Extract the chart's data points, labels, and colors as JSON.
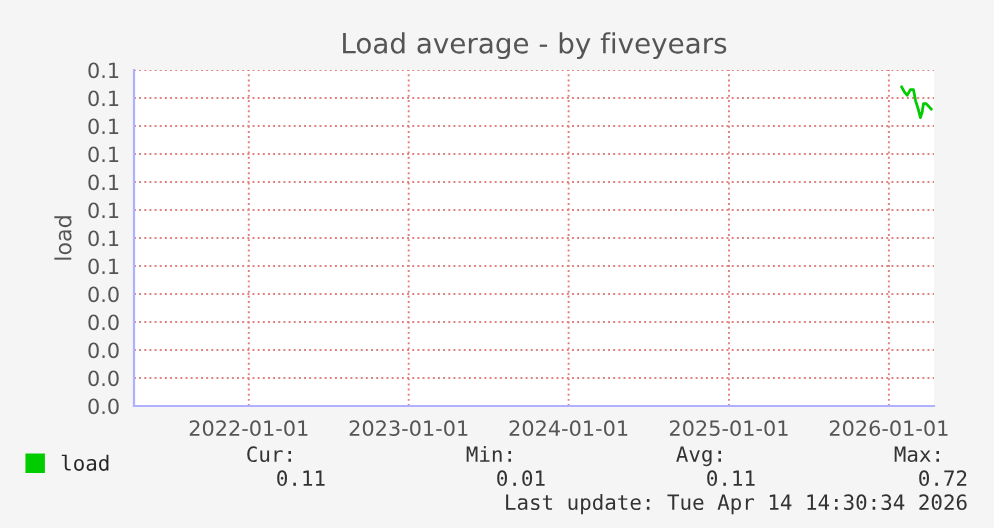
{
  "chart_data": {
    "type": "line",
    "title": "Load average - by fiveyears",
    "ylabel": "load",
    "xlim": [
      "2021-04-14",
      "2026-04-14"
    ],
    "xticks": [
      "2022-01-01",
      "2023-01-01",
      "2024-01-01",
      "2025-01-01",
      "2026-01-01"
    ],
    "ylim": [
      0,
      0.12
    ],
    "yticks": [
      {
        "value": 0,
        "label": "0.0"
      },
      {
        "value": 0.01,
        "label": "0.0"
      },
      {
        "value": 0.02,
        "label": "0.0"
      },
      {
        "value": 0.03,
        "label": "0.0"
      },
      {
        "value": 0.04,
        "label": "0.0"
      },
      {
        "value": 0.05,
        "label": "0.1"
      },
      {
        "value": 0.06,
        "label": "0.1"
      },
      {
        "value": 0.07,
        "label": "0.1"
      },
      {
        "value": 0.08,
        "label": "0.1"
      },
      {
        "value": 0.09,
        "label": "0.1"
      },
      {
        "value": 0.1,
        "label": "0.1"
      },
      {
        "value": 0.11,
        "label": "0.1"
      },
      {
        "value": 0.12,
        "label": "0.1"
      }
    ],
    "grid": true,
    "legend": "bottom left",
    "series": [
      {
        "name": "load",
        "color": "#00cc00",
        "x": [
          "2026-01-30",
          "2026-02-06",
          "2026-02-12",
          "2026-02-19",
          "2026-02-26",
          "2026-03-03",
          "2026-03-09",
          "2026-03-14",
          "2026-03-18",
          "2026-03-21",
          "2026-03-27",
          "2026-04-02",
          "2026-04-08"
        ],
        "values": [
          0.114,
          0.112,
          0.111,
          0.113,
          0.113,
          0.109,
          0.106,
          0.103,
          0.105,
          0.108,
          0.108,
          0.107,
          0.106
        ]
      }
    ],
    "annotations": [
      "Cur:",
      "Min:",
      "Avg:",
      "Max:",
      "0.11",
      "0.01",
      "0.11",
      "0.72",
      "Last update: Tue Apr 14 14:30:34 2026"
    ]
  }
}
